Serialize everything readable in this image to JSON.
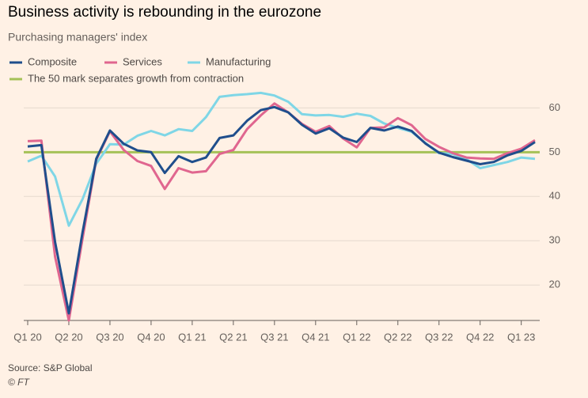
{
  "chart_data": {
    "type": "line",
    "title": "Business activity is rebounding in the eurozone",
    "subtitle": "Purchasing managers' index",
    "categories": [
      "Q1 20",
      null,
      null,
      "Q2 20",
      null,
      null,
      "Q3 20",
      null,
      null,
      "Q4 20",
      null,
      null,
      "Q1 21",
      null,
      null,
      "Q2 21",
      null,
      null,
      "Q3 21",
      null,
      null,
      "Q4 21",
      null,
      null,
      "Q1 22",
      null,
      null,
      "Q2 22",
      null,
      null,
      "Q3 22",
      null,
      null,
      "Q4 22",
      null,
      null,
      "Q1 23",
      null
    ],
    "series": [
      {
        "name": "Composite",
        "color": "#1f4e8c",
        "values": [
          51.3,
          51.6,
          29.7,
          13.6,
          31.9,
          48.5,
          54.9,
          51.9,
          50.4,
          50.0,
          45.3,
          49.1,
          47.8,
          48.8,
          53.2,
          53.8,
          57.1,
          59.5,
          60.2,
          59.0,
          56.2,
          54.2,
          55.4,
          53.3,
          52.3,
          55.5,
          54.9,
          55.8,
          54.8,
          52.0,
          49.9,
          48.9,
          48.1,
          47.3,
          47.8,
          49.3,
          50.3,
          52.3
        ]
      },
      {
        "name": "Services",
        "color": "#e0668f",
        "values": [
          52.5,
          52.6,
          26.4,
          12.0,
          30.5,
          48.3,
          54.7,
          50.5,
          48.0,
          46.9,
          41.7,
          46.4,
          45.4,
          45.7,
          49.6,
          50.5,
          55.2,
          58.3,
          61.0,
          59.0,
          56.4,
          54.6,
          55.9,
          53.1,
          51.1,
          55.5,
          55.6,
          57.7,
          56.1,
          53.0,
          51.2,
          49.8,
          48.8,
          48.6,
          48.5,
          49.8,
          50.8,
          52.7
        ]
      },
      {
        "name": "Manufacturing",
        "color": "#7fd6e6",
        "values": [
          47.9,
          49.2,
          44.5,
          33.4,
          39.4,
          47.4,
          51.8,
          51.7,
          53.7,
          54.8,
          53.8,
          55.2,
          54.8,
          57.9,
          62.5,
          62.9,
          63.1,
          63.4,
          62.8,
          61.4,
          58.6,
          58.3,
          58.4,
          58.0,
          58.7,
          58.2,
          56.5,
          55.5,
          54.6,
          52.1,
          49.8,
          49.6,
          48.4,
          46.4,
          47.1,
          47.8,
          48.8,
          48.5
        ]
      }
    ],
    "reference": {
      "value": 50,
      "label": "The 50 mark separates growth from contraction",
      "color": "#a5c157"
    },
    "ylim": [
      12,
      64
    ],
    "yticks": [
      20,
      30,
      40,
      50,
      60
    ],
    "grid": true,
    "source": "Source: S&P Global",
    "credit": "© FT"
  }
}
